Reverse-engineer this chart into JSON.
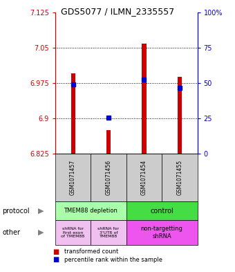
{
  "title": "GDS5077 / ILMN_2335557",
  "samples": [
    "GSM1071457",
    "GSM1071456",
    "GSM1071454",
    "GSM1071455"
  ],
  "red_values": [
    6.995,
    6.875,
    7.058,
    6.988
  ],
  "blue_values": [
    6.972,
    6.902,
    6.982,
    6.965
  ],
  "ylim_left": [
    6.825,
    7.125
  ],
  "yticks_left": [
    6.825,
    6.9,
    6.975,
    7.05,
    7.125
  ],
  "yticks_right_vals": [
    0,
    25,
    50,
    75,
    100
  ],
  "yticks_right_pos": [
    6.825,
    6.9,
    6.975,
    7.05,
    7.125
  ],
  "dotted_yticks": [
    6.9,
    6.975,
    7.05
  ],
  "bar_bottom": 6.825,
  "bar_width": 0.12,
  "red_color": "#cc0000",
  "blue_color": "#0000cc",
  "left_label_color": "#cc0000",
  "right_label_color": "#0000cc",
  "sample_box_color": "#cccccc",
  "protocol_depletion_color": "#aaffaa",
  "protocol_control_color": "#44dd44",
  "other_light_color": "#f0c0f0",
  "other_bright_color": "#ee55ee"
}
